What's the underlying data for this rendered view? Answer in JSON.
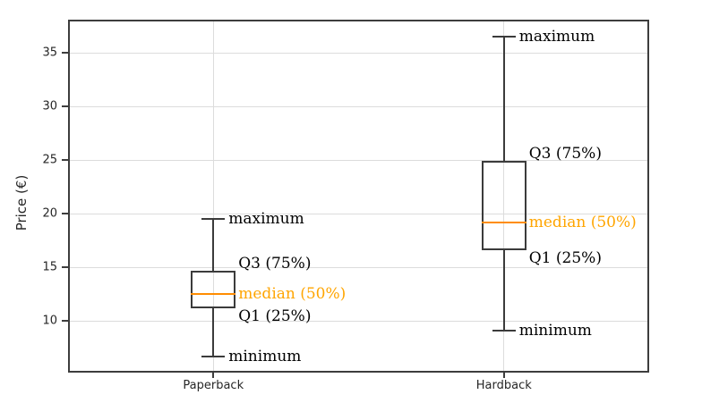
{
  "chart_data": {
    "type": "boxplot",
    "title": "",
    "xlabel": "",
    "ylabel": "Price (€)",
    "categories": [
      "Paperback",
      "Hardback"
    ],
    "yticks": [
      10,
      15,
      20,
      25,
      30,
      35
    ],
    "ylim": [
      5.2,
      38.1
    ],
    "grid": "both",
    "legend": "none",
    "series": [
      {
        "name": "Paperback",
        "min": 6.7,
        "q1": 11.2,
        "median": 12.5,
        "q3": 14.7,
        "max": 19.5
      },
      {
        "name": "Hardback",
        "min": 9.1,
        "q1": 16.6,
        "median": 19.2,
        "q3": 24.9,
        "max": 36.5
      }
    ],
    "annotations": {
      "max_label": "maximum",
      "q3_label": "Q3 (75%)",
      "median_label": "median (50%)",
      "q1_label": "Q1 (25%)",
      "min_label": "minimum"
    },
    "colors": {
      "box_edge": "#3b3b3b",
      "spine": "#3d3d3d",
      "grid": "#dcdcdc",
      "median_line": "#ff8c00",
      "median_label": "#ffa500",
      "annotation_text": "#000000",
      "tick_text": "#262626",
      "background": "#ffffff"
    }
  }
}
